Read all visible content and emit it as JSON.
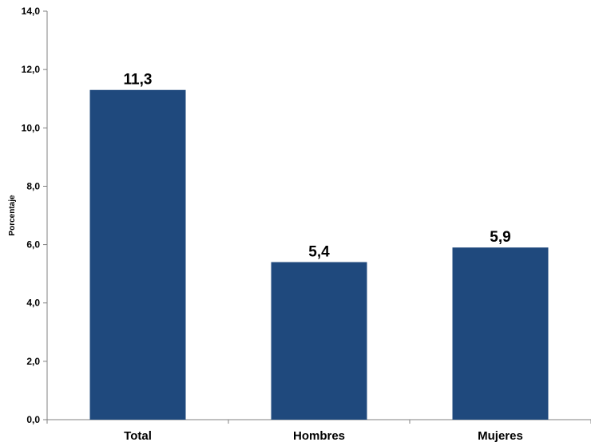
{
  "chart_data": {
    "type": "bar",
    "title": "",
    "xlabel": "",
    "ylabel": "Porcentaje",
    "categories": [
      "Total",
      "Hombres",
      "Mujeres"
    ],
    "values": [
      11.3,
      5.4,
      5.9
    ],
    "data_labels": [
      "11,3",
      "5,4",
      "5,9"
    ],
    "ylim": [
      0,
      14
    ],
    "yticks": [
      0,
      2,
      4,
      6,
      8,
      10,
      12,
      14
    ],
    "ytick_labels": [
      "0,0",
      "2,0",
      "4,0",
      "6,0",
      "8,0",
      "10,0",
      "12,0",
      "14,0"
    ],
    "grid": false,
    "legend": "none",
    "bar_color": "#1f497d"
  }
}
